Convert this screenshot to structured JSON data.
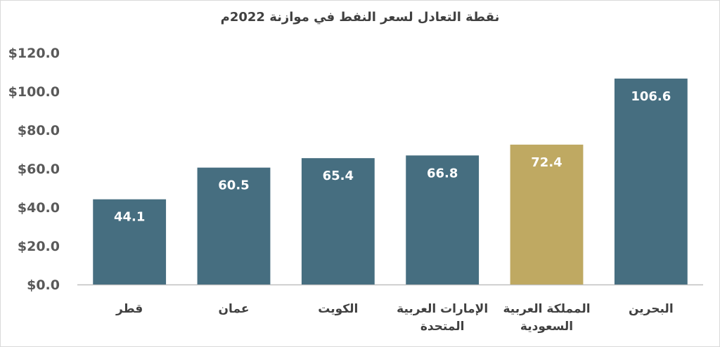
{
  "chart_data": {
    "type": "bar",
    "title": "نقطة التعادل لسعر النفط في موازنة 2022م",
    "categories": [
      "قطر",
      "عمان",
      "الكويت",
      "الإمارات العربية\nالمتحدة",
      "المملكة العربية\nالسعودية",
      "البحرين"
    ],
    "values": [
      44.1,
      60.5,
      65.4,
      66.8,
      72.4,
      106.6
    ],
    "data_labels": [
      "44.1",
      "60.5",
      "65.4",
      "66.8",
      "72.4",
      "106.6"
    ],
    "bar_colors": [
      "#466e80",
      "#466e80",
      "#466e80",
      "#466e80",
      "#bfa962",
      "#466e80"
    ],
    "ylim": [
      0,
      120
    ],
    "yticks": [
      0,
      20,
      40,
      60,
      80,
      100,
      120
    ],
    "ytick_labels": [
      "$0.0",
      "$20.0",
      "$40.0",
      "$60.0",
      "$80.0",
      "$100.0",
      "$120.0"
    ],
    "grid": false,
    "legend": "none",
    "xlabel": "",
    "ylabel": ""
  }
}
